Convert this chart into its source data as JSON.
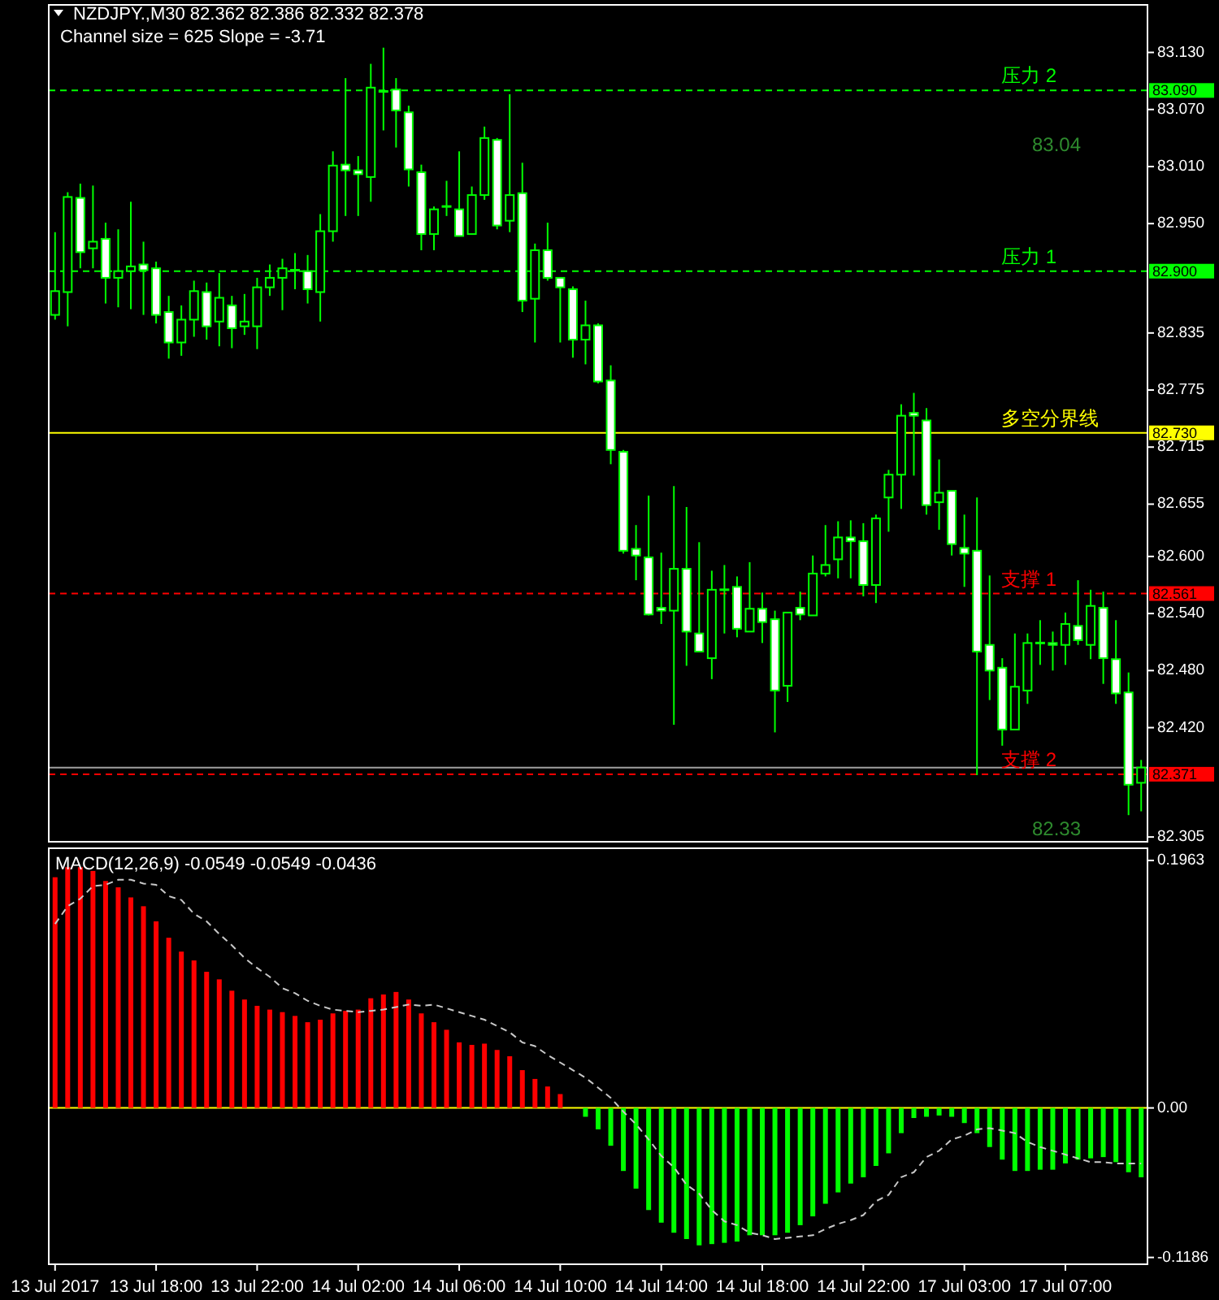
{
  "chart_data": [
    {
      "type": "candlestick",
      "title": "NZDJPY.,M30  82.362 82.386 82.332 82.378",
      "subtitle": "Channel size = 625 Slope = -3.71",
      "tick_labels": "y",
      "categories": [
        null,
        null,
        null,
        null,
        null,
        null,
        null,
        null,
        null,
        null,
        null,
        null,
        null,
        null,
        null,
        null,
        null,
        null,
        null,
        null,
        null,
        null,
        null,
        null,
        null,
        null,
        null,
        null,
        null,
        null,
        null,
        null,
        null,
        null,
        null,
        null,
        null,
        null,
        null,
        null,
        null,
        null,
        null,
        null,
        null,
        null,
        null,
        null,
        null,
        null,
        null,
        null,
        null,
        null,
        null,
        null,
        null,
        null,
        null,
        null,
        null,
        null,
        null,
        null,
        null,
        null,
        null,
        null,
        null,
        null,
        null,
        null,
        null,
        null,
        null,
        null,
        null,
        null,
        null,
        null,
        null,
        null,
        null,
        null,
        null,
        null,
        null
      ],
      "ohlc": [
        [
          82.854,
          82.941,
          82.849,
          82.879
        ],
        [
          82.878,
          82.983,
          82.842,
          82.978
        ],
        [
          82.977,
          82.992,
          82.903,
          82.92
        ],
        [
          82.924,
          82.99,
          82.903,
          82.931
        ],
        [
          82.934,
          82.951,
          82.866,
          82.893
        ],
        [
          82.893,
          82.944,
          82.862,
          82.9
        ],
        [
          82.9,
          82.973,
          82.86,
          82.905
        ],
        [
          82.907,
          82.931,
          82.854,
          82.901
        ],
        [
          82.903,
          82.91,
          82.845,
          82.854
        ],
        [
          82.857,
          82.874,
          82.808,
          82.825
        ],
        [
          82.825,
          82.864,
          82.811,
          82.849
        ],
        [
          82.849,
          82.89,
          82.831,
          82.879
        ],
        [
          82.878,
          82.888,
          82.828,
          82.842
        ],
        [
          82.847,
          82.898,
          82.821,
          82.872
        ],
        [
          82.864,
          82.874,
          82.819,
          82.84
        ],
        [
          82.842,
          82.876,
          82.833,
          82.847
        ],
        [
          82.842,
          82.893,
          82.818,
          82.883
        ],
        [
          82.883,
          82.907,
          82.874,
          82.893
        ],
        [
          82.893,
          82.913,
          82.859,
          82.903
        ],
        [
          82.901,
          82.919,
          82.881,
          82.901
        ],
        [
          82.9,
          82.917,
          82.866,
          82.881
        ],
        [
          82.878,
          82.96,
          82.847,
          82.942
        ],
        [
          82.942,
          83.026,
          82.931,
          83.011
        ],
        [
          83.012,
          83.103,
          82.958,
          83.006
        ],
        [
          83.006,
          83.021,
          82.958,
          83.002
        ],
        [
          82.999,
          83.118,
          82.973,
          83.093
        ],
        [
          83.089,
          83.135,
          83.048,
          83.089
        ],
        [
          83.091,
          83.103,
          83.03,
          83.069
        ],
        [
          83.067,
          83.074,
          82.989,
          83.007
        ],
        [
          83.004,
          83.012,
          82.922,
          82.939
        ],
        [
          82.939,
          82.968,
          82.922,
          82.965
        ],
        [
          82.968,
          82.995,
          82.958,
          82.968
        ],
        [
          82.965,
          83.026,
          82.937,
          82.937
        ],
        [
          82.939,
          82.989,
          82.939,
          82.98
        ],
        [
          82.98,
          83.052,
          82.975,
          83.04
        ],
        [
          83.038,
          83.04,
          82.944,
          82.948
        ],
        [
          82.953,
          83.086,
          82.941,
          82.98
        ],
        [
          82.982,
          83.014,
          82.857,
          82.869
        ],
        [
          82.871,
          82.929,
          82.825,
          82.922
        ],
        [
          82.922,
          82.951,
          82.89,
          82.893
        ],
        [
          82.893,
          82.893,
          82.825,
          82.883
        ],
        [
          82.881,
          82.884,
          82.809,
          82.828
        ],
        [
          82.828,
          82.869,
          82.802,
          82.843
        ],
        [
          82.843,
          82.845,
          82.782,
          82.784
        ],
        [
          82.785,
          82.801,
          82.697,
          82.712
        ],
        [
          82.71,
          82.712,
          82.603,
          82.606
        ],
        [
          82.608,
          82.633,
          82.575,
          82.601
        ],
        [
          82.599,
          82.664,
          82.538,
          82.539
        ],
        [
          82.546,
          82.604,
          82.529,
          82.543
        ],
        [
          82.543,
          82.674,
          82.423,
          82.587
        ],
        [
          82.587,
          82.652,
          82.485,
          82.521
        ],
        [
          82.519,
          82.615,
          82.5,
          82.5
        ],
        [
          82.493,
          82.585,
          82.471,
          82.565
        ],
        [
          82.565,
          82.591,
          82.519,
          82.565
        ],
        [
          82.568,
          82.579,
          82.515,
          82.524
        ],
        [
          82.521,
          82.594,
          82.521,
          82.545
        ],
        [
          82.545,
          82.562,
          82.509,
          82.531
        ],
        [
          82.534,
          82.543,
          82.415,
          82.459
        ],
        [
          82.464,
          82.541,
          82.447,
          82.541
        ],
        [
          82.546,
          82.563,
          82.533,
          82.539
        ],
        [
          82.538,
          82.601,
          82.538,
          82.582
        ],
        [
          82.582,
          82.633,
          82.579,
          82.591
        ],
        [
          82.597,
          82.637,
          82.577,
          82.62
        ],
        [
          82.62,
          82.638,
          82.577,
          82.616
        ],
        [
          82.616,
          82.635,
          82.558,
          82.57
        ],
        [
          82.57,
          82.644,
          82.551,
          82.64
        ],
        [
          82.662,
          82.691,
          82.626,
          82.686
        ],
        [
          82.686,
          82.76,
          82.65,
          82.748
        ],
        [
          82.751,
          82.772,
          82.685,
          82.748
        ],
        [
          82.743,
          82.756,
          82.644,
          82.654
        ],
        [
          82.657,
          82.702,
          82.628,
          82.667
        ],
        [
          82.669,
          82.669,
          82.601,
          82.613
        ],
        [
          82.609,
          82.644,
          82.568,
          82.603
        ],
        [
          82.606,
          82.662,
          82.37,
          82.5
        ],
        [
          82.507,
          82.58,
          82.449,
          82.48
        ],
        [
          82.483,
          82.493,
          82.401,
          82.418
        ],
        [
          82.418,
          82.519,
          82.418,
          82.463
        ],
        [
          82.459,
          82.519,
          82.445,
          82.509
        ],
        [
          82.509,
          82.533,
          82.486,
          82.509
        ],
        [
          82.509,
          82.521,
          82.48,
          82.507
        ],
        [
          82.507,
          82.541,
          82.486,
          82.529
        ],
        [
          82.527,
          82.575,
          82.507,
          82.512
        ],
        [
          82.507,
          82.565,
          82.492,
          82.548
        ],
        [
          82.546,
          82.563,
          82.466,
          82.493
        ],
        [
          82.492,
          82.533,
          82.445,
          82.456
        ],
        [
          82.457,
          82.478,
          82.328,
          82.36
        ],
        [
          82.362,
          82.386,
          82.332,
          82.378
        ]
      ],
      "ylim": [
        82.3,
        83.18
      ],
      "yticks": [
        {
          "value": 83.13,
          "label": "83.130"
        },
        {
          "value": 83.07,
          "label": "83.070"
        },
        {
          "value": 83.01,
          "label": "83.010"
        },
        {
          "value": 82.95,
          "label": "82.950"
        },
        {
          "value": 82.835,
          "label": "82.835"
        },
        {
          "value": 82.775,
          "label": "82.775"
        },
        {
          "value": 82.715,
          "label": "82.715"
        },
        {
          "value": 82.655,
          "label": "82.655"
        },
        {
          "value": 82.6,
          "label": "82.600"
        },
        {
          "value": 82.54,
          "label": "82.540"
        },
        {
          "value": 82.48,
          "label": "82.480"
        },
        {
          "value": 82.42,
          "label": "82.420"
        },
        {
          "value": 82.305,
          "label": "82.305"
        }
      ],
      "ref_lines": [
        {
          "axis": "y",
          "value": 82.378,
          "color": "#a0a0a0",
          "line_style": "solid"
        },
        {
          "axis": "y",
          "value": 83.09,
          "label": "压力 2",
          "color": "#00ff00",
          "line_style": "dashed"
        },
        {
          "axis": "y",
          "value": 82.9,
          "label": "压力 1",
          "color": "#00ff00",
          "line_style": "dashed"
        },
        {
          "axis": "y",
          "value": 82.73,
          "label": "多空分界线",
          "color": "#ffff00",
          "line_style": "solid"
        },
        {
          "axis": "y",
          "value": 82.561,
          "label": "支撑 1",
          "color": "#ff0000",
          "line_style": "dashed"
        },
        {
          "axis": "y",
          "value": 82.371,
          "label": "支撑 2",
          "color": "#ff0000",
          "line_style": "dashed"
        }
      ],
      "annotations": [
        "83.04",
        "82.33",
        "83.090",
        "82.900",
        "82.730",
        "82.561",
        "82.371"
      ]
    },
    {
      "type": "bar",
      "title": "MACD(12,26,9) -0.0549 -0.0549 -0.0436",
      "categories": [
        "13 Jul 2017",
        null,
        null,
        null,
        null,
        null,
        null,
        null,
        "13 Jul 18:00",
        null,
        null,
        null,
        null,
        null,
        null,
        null,
        "13 Jul 22:00",
        null,
        null,
        null,
        null,
        null,
        null,
        null,
        "14 Jul 02:00",
        null,
        null,
        null,
        null,
        null,
        null,
        null,
        "14 Jul 06:00",
        null,
        null,
        null,
        null,
        null,
        null,
        null,
        "14 Jul 10:00",
        null,
        null,
        null,
        null,
        null,
        null,
        null,
        "14 Jul 14:00",
        null,
        null,
        null,
        null,
        null,
        null,
        null,
        "14 Jul 18:00",
        null,
        null,
        null,
        null,
        null,
        null,
        null,
        "14 Jul 22:00",
        null,
        null,
        null,
        null,
        null,
        null,
        null,
        "17 Jul 03:00",
        null,
        null,
        null,
        null,
        null,
        null,
        null,
        "17 Jul 07:00",
        null,
        null,
        null,
        null,
        null,
        null
      ],
      "series": [
        {
          "type": "bar",
          "values": [
            0.183,
            0.191,
            0.191,
            0.188,
            0.18,
            0.175,
            0.167,
            0.16,
            0.148,
            0.135,
            0.124,
            0.117,
            0.108,
            0.102,
            0.093,
            0.086,
            0.081,
            0.078,
            0.076,
            0.073,
            0.068,
            0.07,
            0.075,
            0.077,
            0.078,
            0.087,
            0.09,
            0.092,
            0.086,
            0.075,
            0.068,
            0.062,
            0.052,
            0.05,
            0.051,
            0.046,
            0.041,
            0.03,
            0.023,
            0.017,
            0.011,
            0,
            -0.007,
            -0.017,
            -0.03,
            -0.05,
            -0.064,
            -0.081,
            -0.091,
            -0.099,
            -0.104,
            -0.109,
            -0.108,
            -0.107,
            -0.106,
            -0.101,
            -0.101,
            -0.101,
            -0.099,
            -0.093,
            -0.086,
            -0.076,
            -0.067,
            -0.06,
            -0.055,
            -0.046,
            -0.036,
            -0.02,
            -0.008,
            -0.007,
            -0.006,
            -0.007,
            -0.012,
            -0.02,
            -0.031,
            -0.041,
            -0.05,
            -0.05,
            -0.049,
            -0.049,
            -0.044,
            -0.041,
            -0.04,
            -0.039,
            -0.043,
            -0.051,
            -0.055
          ],
          "colors": [
            "#ff0000",
            "#ff0000",
            "#ff0000",
            "#ff0000",
            "#ff0000",
            "#ff0000",
            "#ff0000",
            "#ff0000",
            "#ff0000",
            "#ff0000",
            "#ff0000",
            "#ff0000",
            "#ff0000",
            "#ff0000",
            "#ff0000",
            "#ff0000",
            "#ff0000",
            "#ff0000",
            "#ff0000",
            "#ff0000",
            "#ff0000",
            "#ff0000",
            "#ff0000",
            "#ff0000",
            "#ff0000",
            "#ff0000",
            "#ff0000",
            "#ff0000",
            "#ff0000",
            "#ff0000",
            "#ff0000",
            "#ff0000",
            "#ff0000",
            "#ff0000",
            "#ff0000",
            "#ff0000",
            "#ff0000",
            "#ff0000",
            "#ff0000",
            "#ff0000",
            "#ff0000",
            "#ff0000",
            "#00ff00",
            "#00ff00",
            "#00ff00",
            "#00ff00",
            "#00ff00",
            "#00ff00",
            "#00ff00",
            "#00ff00",
            "#00ff00",
            "#00ff00",
            "#00ff00",
            "#00ff00",
            "#00ff00",
            "#00ff00",
            "#00ff00",
            "#00ff00",
            "#00ff00",
            "#00ff00",
            "#00ff00",
            "#00ff00",
            "#00ff00",
            "#00ff00",
            "#00ff00",
            "#00ff00",
            "#00ff00",
            "#00ff00",
            "#00ff00",
            "#00ff00",
            "#00ff00",
            "#00ff00",
            "#00ff00",
            "#00ff00",
            "#00ff00",
            "#00ff00",
            "#00ff00",
            "#00ff00",
            "#00ff00",
            "#00ff00",
            "#00ff00",
            "#00ff00",
            "#00ff00",
            "#00ff00",
            "#00ff00",
            "#00ff00",
            "#00ff00"
          ]
        },
        {
          "type": "line",
          "color": "#c8c8c8",
          "line_style": "dashed",
          "values": [
            0.146,
            0.16,
            0.166,
            0.176,
            0.177,
            0.181,
            0.181,
            0.178,
            0.177,
            0.168,
            0.165,
            0.154,
            0.148,
            0.138,
            0.129,
            0.119,
            0.111,
            0.104,
            0.095,
            0.091,
            0.085,
            0.081,
            0.078,
            0.077,
            0.076,
            0.077,
            0.078,
            0.08,
            0.082,
            0.081,
            0.082,
            0.079,
            0.076,
            0.073,
            0.07,
            0.065,
            0.06,
            0.052,
            0.049,
            0.042,
            0.036,
            0.03,
            0.024,
            0.016,
            0.008,
            -0.003,
            -0.013,
            -0.025,
            -0.038,
            -0.047,
            -0.061,
            -0.068,
            -0.081,
            -0.09,
            -0.093,
            -0.099,
            -0.101,
            -0.104,
            -0.103,
            -0.102,
            -0.101,
            -0.096,
            -0.092,
            -0.089,
            -0.085,
            -0.074,
            -0.069,
            -0.055,
            -0.051,
            -0.039,
            -0.034,
            -0.025,
            -0.022,
            -0.017,
            -0.016,
            -0.018,
            -0.02,
            -0.027,
            -0.031,
            -0.034,
            -0.037,
            -0.04,
            -0.043,
            -0.043,
            -0.044,
            -0.044,
            -0.044
          ]
        }
      ],
      "ylim": [
        -0.124,
        0.206
      ],
      "yticks": [
        {
          "value": 0.1963,
          "label": "0.1963"
        },
        {
          "value": 0,
          "label": "0.00"
        },
        {
          "value": -0.1186,
          "label": "-0.1186"
        }
      ],
      "ref_lines": [
        {
          "axis": "y",
          "value": 0,
          "color": "#ffff00",
          "line_style": "solid"
        }
      ]
    }
  ]
}
